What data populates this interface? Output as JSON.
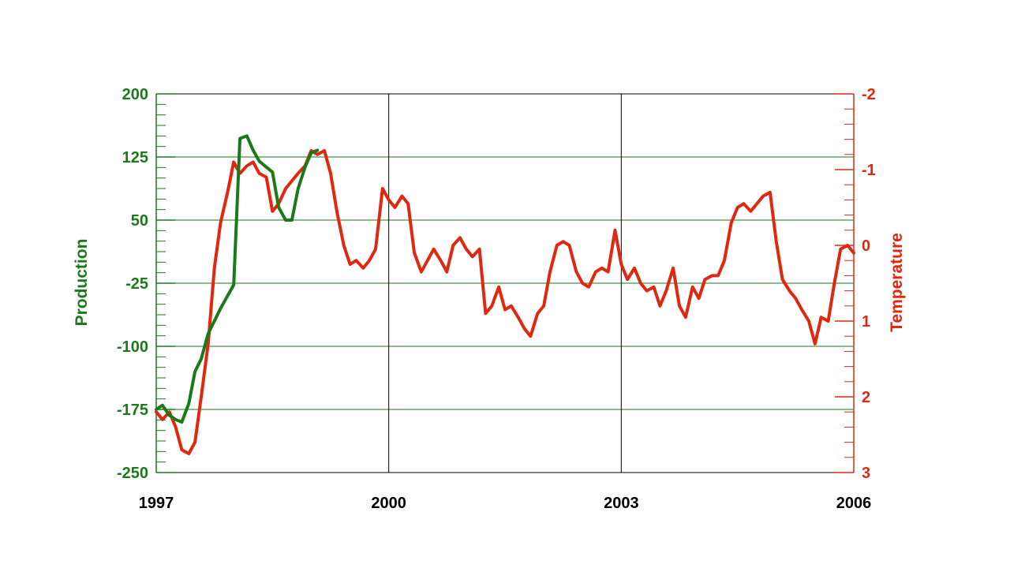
{
  "chart_data": {
    "type": "line",
    "title": "",
    "xlabel": "",
    "x_ticks": [
      "1997",
      "2000",
      "2003",
      "2006"
    ],
    "x_range": [
      1997,
      2006
    ],
    "y_left": {
      "label": "Production",
      "color": "#1a7a1a",
      "ticks": [
        "200",
        "125",
        "50",
        "-25",
        "-100",
        "-175",
        "-250"
      ],
      "range": [
        -250,
        200
      ]
    },
    "y_right": {
      "label": "Temperature",
      "color": "#e02810",
      "ticks": [
        "-2",
        "-1",
        "0",
        "1",
        "2",
        "3"
      ],
      "range": [
        -2,
        3
      ],
      "inverted": true
    },
    "grid": true,
    "series": [
      {
        "axis": "left",
        "color": "#1a7a1a",
        "x": [
          1997.0,
          1997.08,
          1997.17,
          1997.25,
          1997.33,
          1997.42,
          1997.5,
          1997.58,
          1997.67,
          1997.75,
          1997.83,
          1997.92,
          1998.0,
          1998.08,
          1998.17,
          1998.25,
          1998.33,
          1998.42,
          1998.5,
          1998.58,
          1998.67,
          1998.75,
          1998.83,
          1998.92,
          1999.0,
          1999.08
        ],
        "y": [
          -175,
          -170,
          -182,
          -187,
          -190,
          -168,
          -130,
          -115,
          -85,
          -70,
          -55,
          -40,
          -27,
          147,
          150,
          133,
          120,
          113,
          107,
          65,
          50,
          50,
          87,
          113,
          130,
          133
        ]
      },
      {
        "axis": "right",
        "color": "#e02810",
        "x": [
          1997.0,
          1997.08,
          1997.17,
          1997.25,
          1997.33,
          1997.42,
          1997.5,
          1997.58,
          1997.67,
          1997.75,
          1997.83,
          1997.92,
          1998.0,
          1998.08,
          1998.17,
          1998.25,
          1998.33,
          1998.42,
          1998.5,
          1998.58,
          1998.67,
          1998.75,
          1998.83,
          1998.92,
          1999.0,
          1999.08,
          1999.17,
          1999.25,
          1999.33,
          1999.42,
          1999.5,
          1999.58,
          1999.67,
          1999.75,
          1999.83,
          1999.92,
          2000.0,
          2000.08,
          2000.17,
          2000.25,
          2000.33,
          2000.42,
          2000.5,
          2000.58,
          2000.67,
          2000.75,
          2000.83,
          2000.92,
          2001.0,
          2001.08,
          2001.17,
          2001.25,
          2001.33,
          2001.42,
          2001.5,
          2001.58,
          2001.67,
          2001.75,
          2001.83,
          2001.92,
          2002.0,
          2002.08,
          2002.17,
          2002.25,
          2002.33,
          2002.42,
          2002.5,
          2002.58,
          2002.67,
          2002.75,
          2002.83,
          2002.92,
          2003.0,
          2003.08,
          2003.17,
          2003.25,
          2003.33,
          2003.42,
          2003.5,
          2003.58,
          2003.67,
          2003.75,
          2003.83,
          2003.92,
          2004.0,
          2004.08,
          2004.17,
          2004.25,
          2004.33,
          2004.42,
          2004.5,
          2004.58,
          2004.67,
          2004.75,
          2004.83,
          2004.92,
          2005.0,
          2005.08,
          2005.17,
          2005.25,
          2005.33,
          2005.42,
          2005.5,
          2005.58,
          2005.67,
          2005.75,
          2005.83,
          2005.92,
          2006.0
        ],
        "y": [
          2.2,
          2.3,
          2.2,
          2.4,
          2.7,
          2.75,
          2.6,
          2.0,
          1.3,
          0.3,
          -0.3,
          -0.7,
          -1.1,
          -0.95,
          -1.05,
          -1.1,
          -0.95,
          -0.9,
          -0.45,
          -0.55,
          -0.75,
          -0.85,
          -0.95,
          -1.05,
          -1.25,
          -1.2,
          -1.25,
          -0.95,
          -0.45,
          0.0,
          0.25,
          0.2,
          0.3,
          0.2,
          0.05,
          -0.75,
          -0.6,
          -0.5,
          -0.65,
          -0.55,
          0.1,
          0.35,
          0.2,
          0.05,
          0.2,
          0.35,
          0.0,
          -0.1,
          0.05,
          0.15,
          0.05,
          0.9,
          0.8,
          0.55,
          0.85,
          0.8,
          0.95,
          1.1,
          1.2,
          0.9,
          0.8,
          0.35,
          0.0,
          -0.05,
          0.0,
          0.35,
          0.5,
          0.55,
          0.35,
          0.3,
          0.35,
          -0.2,
          0.25,
          0.45,
          0.3,
          0.5,
          0.6,
          0.55,
          0.8,
          0.6,
          0.3,
          0.8,
          0.95,
          0.55,
          0.7,
          0.45,
          0.4,
          0.4,
          0.2,
          -0.3,
          -0.5,
          -0.55,
          -0.45,
          -0.55,
          -0.65,
          -0.7,
          -0.05,
          0.45,
          0.6,
          0.7,
          0.85,
          1.0,
          1.3,
          0.95,
          1.0,
          0.5,
          0.05,
          0.0,
          0.1
        ]
      }
    ]
  }
}
